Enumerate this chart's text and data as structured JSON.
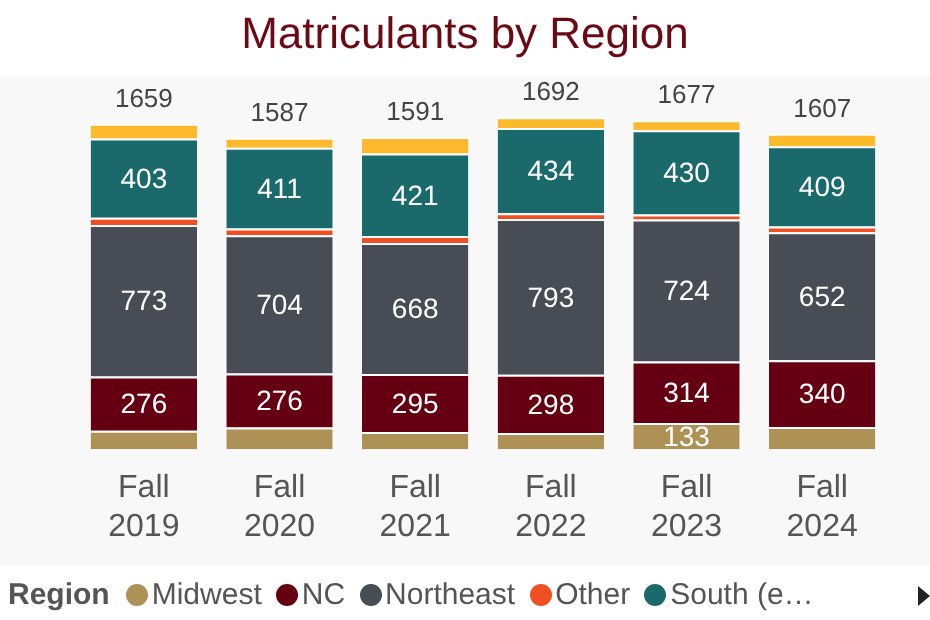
{
  "chart_data": {
    "type": "bar",
    "title": "Matriculants by Region",
    "stacked": true,
    "legend": "bottom",
    "legend_title": "Region",
    "marker": "circle",
    "grid": false,
    "categories": [
      "Fall 2019",
      "Fall 2020",
      "Fall 2021",
      "Fall 2022",
      "Fall 2023",
      "Fall 2024"
    ],
    "series": [
      {
        "name": "Midwest",
        "color": "#ad9155",
        "values": [
          94,
          110,
          88,
          82,
          133,
          113
        ],
        "value_labels": [
          null,
          null,
          null,
          null,
          "133",
          null
        ]
      },
      {
        "name": "NC",
        "color": "#650012",
        "values": [
          276,
          276,
          295,
          298,
          314,
          340
        ],
        "value_labels": [
          "276",
          "276",
          "295",
          "298",
          "314",
          "340"
        ]
      },
      {
        "name": "Northeast",
        "color": "#474c55",
        "values": [
          773,
          704,
          668,
          793,
          724,
          652
        ],
        "value_labels": [
          "773",
          "704",
          "668",
          "793",
          "724",
          "652"
        ]
      },
      {
        "name": "Other",
        "color": "#f04e23",
        "values": [
          37,
          35,
          35,
          30,
          25,
          30
        ],
        "value_labels": [
          null,
          null,
          null,
          null,
          null,
          null
        ]
      },
      {
        "name": "South (e…",
        "color": "#1b6a6b",
        "values": [
          403,
          411,
          421,
          434,
          430,
          409
        ],
        "value_labels": [
          "403",
          "411",
          "421",
          "434",
          "430",
          "409"
        ]
      },
      {
        "color": "#fdb92c",
        "values": [
          76,
          51,
          84,
          55,
          51,
          63
        ],
        "value_labels": [
          null,
          null,
          null,
          null,
          null,
          null
        ]
      }
    ],
    "totals": [
      "1659",
      "1587",
      "1591",
      "1692",
      "1677",
      "1607"
    ]
  }
}
